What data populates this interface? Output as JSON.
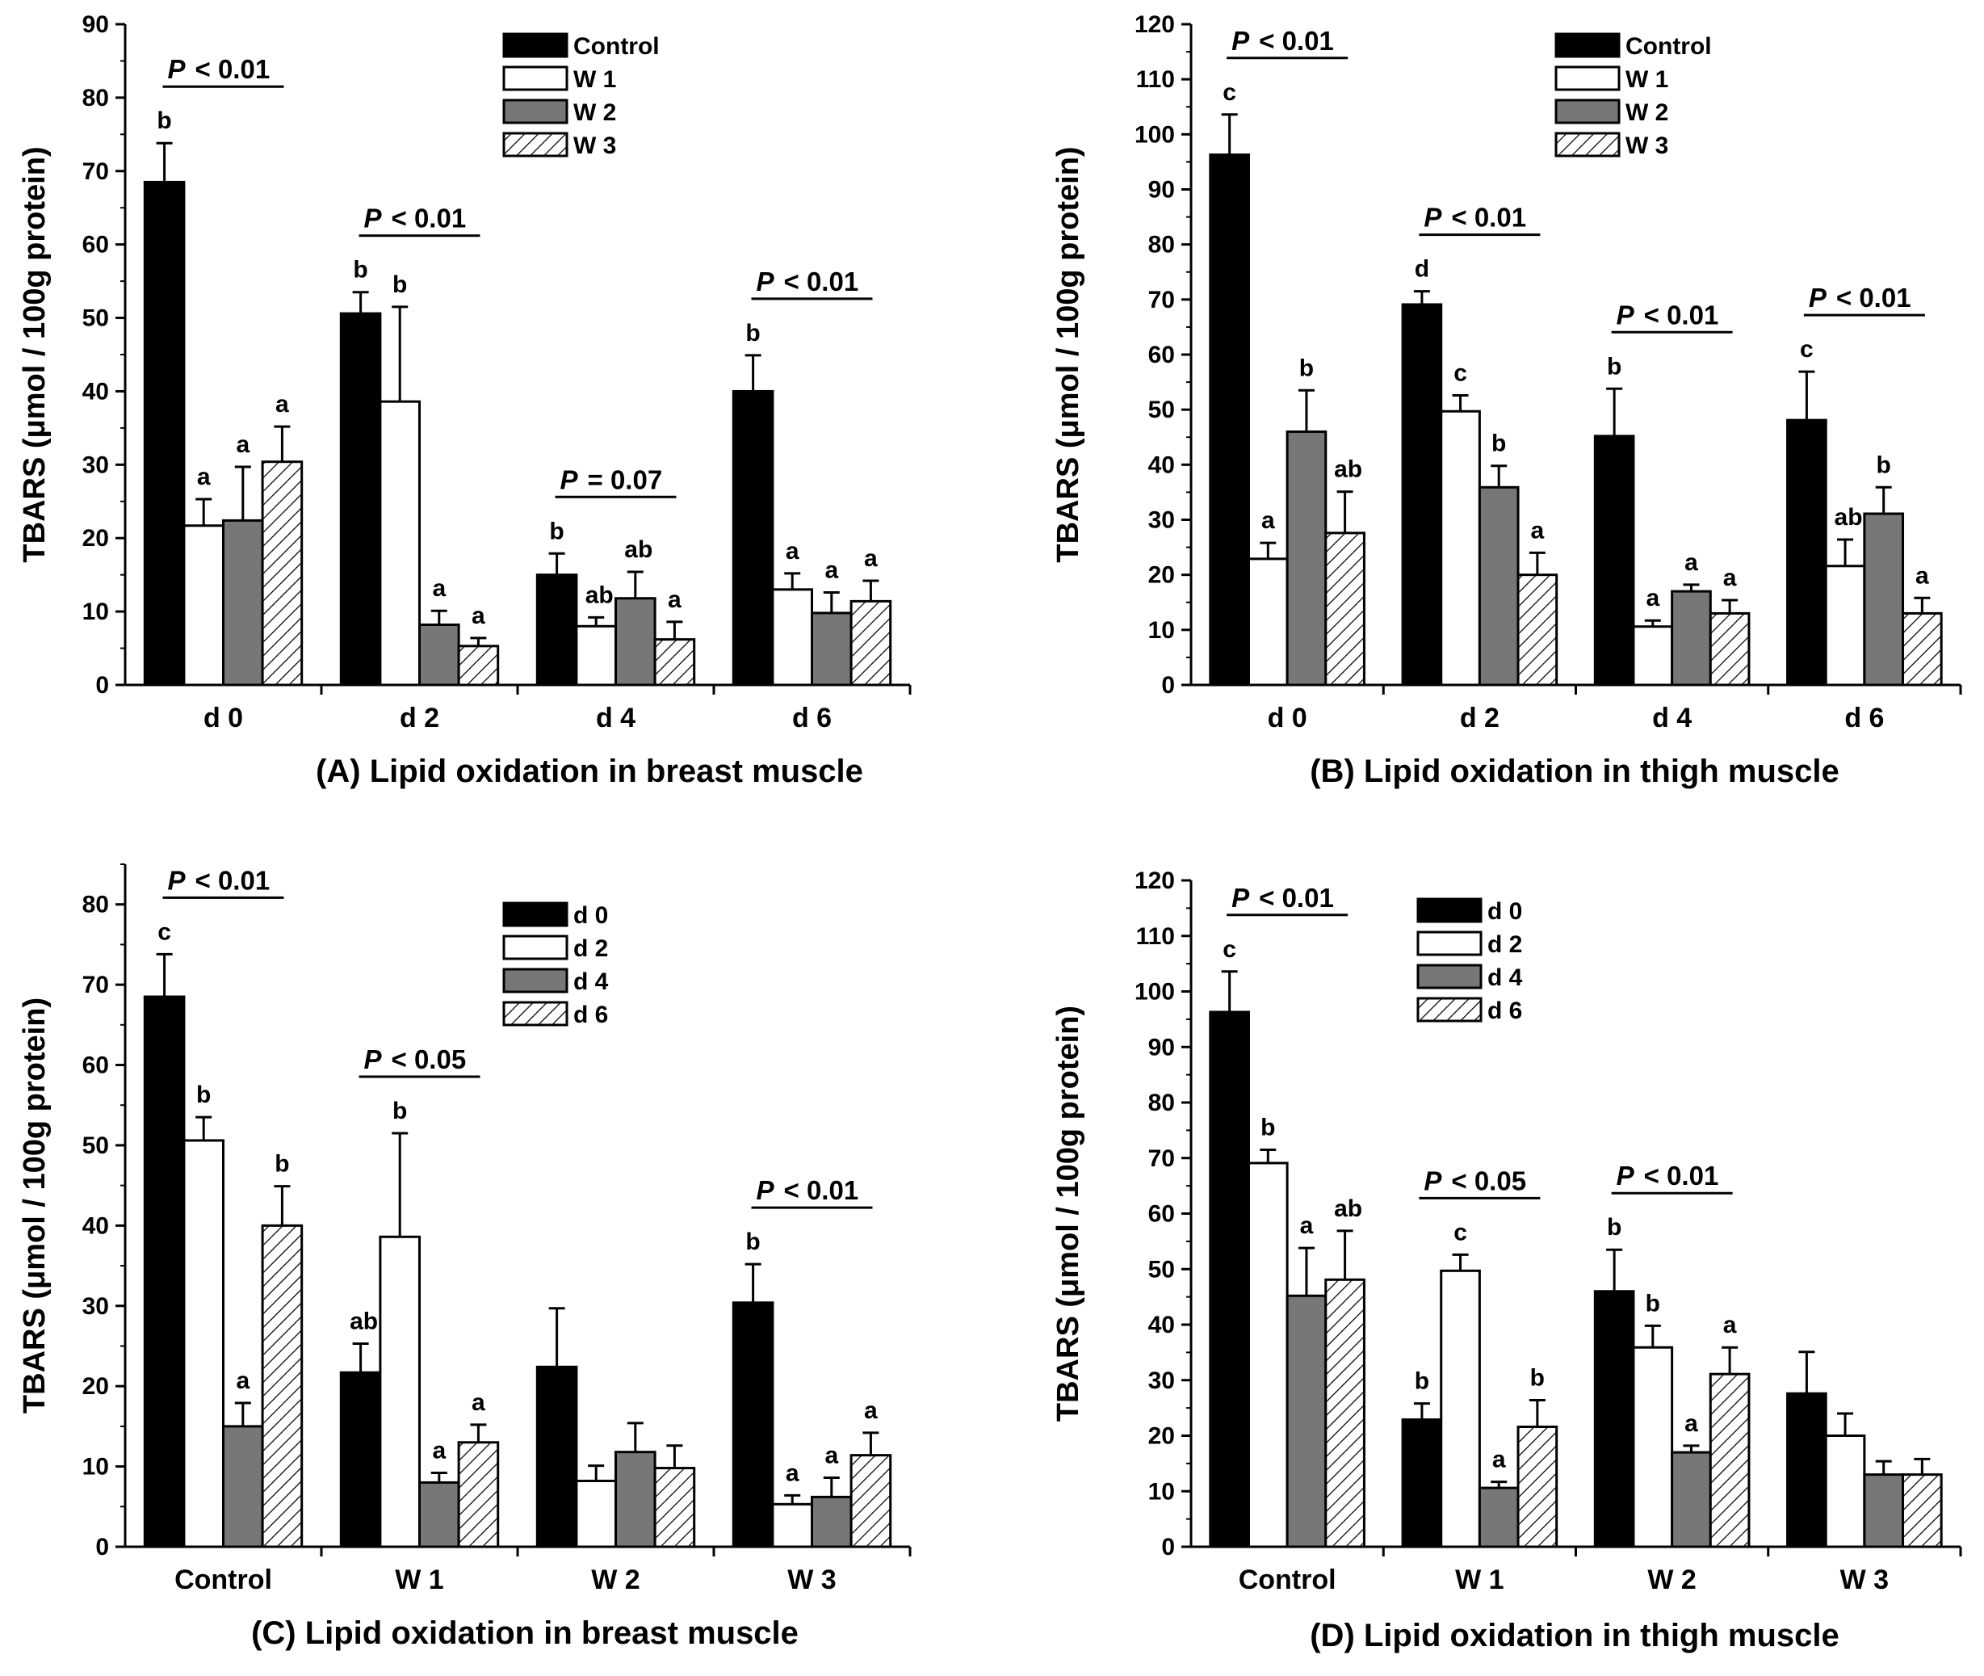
{
  "chart_data": [
    {
      "type": "bar",
      "panel": "A",
      "caption": "(A) Lipid oxidation in  breast  muscle",
      "ylabel": "TBARS (μmol / 100g protein)",
      "xlabel": "",
      "ylim": [
        0,
        90
      ],
      "ystep": 10,
      "categories": [
        "d 0",
        "d 2",
        "d 4",
        "d 6"
      ],
      "legend": {
        "position": "top-right",
        "entries": [
          "Control",
          "W 1",
          "W 2",
          "W 3"
        ]
      },
      "series": [
        {
          "name": "Control",
          "values": [
            68.5,
            50.6,
            15.0,
            40.0
          ],
          "errors": [
            5.3,
            2.9,
            2.9,
            4.9
          ],
          "letters": [
            "b",
            "b",
            "b",
            "b"
          ]
        },
        {
          "name": "W 1",
          "values": [
            21.7,
            38.6,
            8.0,
            13.0
          ],
          "errors": [
            3.6,
            12.9,
            1.2,
            2.2
          ],
          "letters": [
            "a",
            "b",
            "ab",
            "a"
          ]
        },
        {
          "name": "W 2",
          "values": [
            22.4,
            8.2,
            11.8,
            9.8
          ],
          "errors": [
            7.3,
            1.9,
            3.6,
            2.8
          ],
          "letters": [
            "a",
            "a",
            "ab",
            "a"
          ]
        },
        {
          "name": "W 3",
          "values": [
            30.4,
            5.3,
            6.2,
            11.4
          ],
          "errors": [
            4.8,
            1.1,
            2.4,
            2.8
          ],
          "letters": [
            "a",
            "a",
            "a",
            "a"
          ]
        }
      ],
      "pvalues": [
        {
          "label": "P",
          "op": "< 0.01",
          "group": 0
        },
        {
          "label": "P",
          "op": "< 0.01",
          "group": 1
        },
        {
          "label": "P",
          "op": "= 0.07",
          "group": 2
        },
        {
          "label": "P",
          "op": "< 0.01",
          "group": 3
        }
      ]
    },
    {
      "type": "bar",
      "panel": "B",
      "caption": "(B) Lipid oxidation in thigh muscle",
      "ylabel": "TBARS (μmol / 100g protein)",
      "xlabel": "",
      "ylim": [
        0,
        120
      ],
      "ystep": 10,
      "categories": [
        "d 0",
        "d 2",
        "d 4",
        "d 6"
      ],
      "legend": {
        "position": "top-right",
        "entries": [
          "Control",
          "W 1",
          "W 2",
          "W 3"
        ]
      },
      "series": [
        {
          "name": "Control",
          "values": [
            96.3,
            69.1,
            45.2,
            48.1
          ],
          "errors": [
            7.3,
            2.4,
            8.6,
            8.8
          ],
          "letters": [
            "c",
            "d",
            "b",
            "c"
          ]
        },
        {
          "name": "W 1",
          "values": [
            22.9,
            49.7,
            10.6,
            21.6
          ],
          "errors": [
            2.9,
            2.9,
            1.1,
            4.8
          ],
          "letters": [
            "a",
            "c",
            "a",
            "ab"
          ]
        },
        {
          "name": "W 2",
          "values": [
            46.0,
            35.9,
            17.0,
            31.1
          ],
          "errors": [
            7.5,
            3.9,
            1.2,
            4.8
          ],
          "letters": [
            "b",
            "b",
            "a",
            "b"
          ]
        },
        {
          "name": "W 3",
          "values": [
            27.6,
            20.0,
            13.0,
            13.0
          ],
          "errors": [
            7.5,
            4.0,
            2.4,
            2.8
          ],
          "letters": [
            "ab",
            "a",
            "a",
            "a"
          ]
        }
      ],
      "pvalues": [
        {
          "label": "P",
          "op": "< 0.01",
          "group": 0
        },
        {
          "label": "P",
          "op": "< 0.01",
          "group": 1
        },
        {
          "label": "P",
          "op": "< 0.01",
          "group": 2
        },
        {
          "label": "P",
          "op": "< 0.01",
          "group": 3
        }
      ]
    },
    {
      "type": "bar",
      "panel": "C",
      "caption": "(C) Lipid oxidation in breast muscle",
      "ylabel": "TBARS (μmol / 100g protein)",
      "xlabel": "",
      "ylim": [
        0,
        85
      ],
      "ystep": 10,
      "categories": [
        "Control",
        "W 1",
        "W 2",
        "W 3"
      ],
      "legend": {
        "position": "top-right",
        "entries": [
          "d 0",
          "d 2",
          "d 4",
          "d 6"
        ]
      },
      "series": [
        {
          "name": "d 0",
          "values": [
            68.5,
            21.7,
            22.4,
            30.4
          ],
          "errors": [
            5.3,
            3.6,
            7.3,
            4.8
          ],
          "letters": [
            "c",
            "ab",
            "",
            "b"
          ]
        },
        {
          "name": "d 2",
          "values": [
            50.6,
            38.6,
            8.2,
            5.3
          ],
          "errors": [
            2.9,
            12.9,
            1.9,
            1.1
          ],
          "letters": [
            "b",
            "b",
            "",
            "a"
          ]
        },
        {
          "name": "d 4",
          "values": [
            15.0,
            8.0,
            11.8,
            6.2
          ],
          "errors": [
            2.9,
            1.2,
            3.6,
            2.4
          ],
          "letters": [
            "a",
            "a",
            "",
            "a"
          ]
        },
        {
          "name": "d 6",
          "values": [
            40.0,
            13.0,
            9.8,
            11.4
          ],
          "errors": [
            4.9,
            2.2,
            2.8,
            2.8
          ],
          "letters": [
            "b",
            "a",
            "",
            "a"
          ]
        }
      ],
      "pvalues": [
        {
          "label": "P",
          "op": "< 0.01",
          "group": 0
        },
        {
          "label": "P",
          "op": "< 0.05",
          "group": 1
        },
        {
          "label": "P",
          "op": "< 0.01",
          "group": 3
        }
      ]
    },
    {
      "type": "bar",
      "panel": "D",
      "caption": "(D) Lipid oxidation in thigh muscle",
      "ylabel": "TBARS (μmol / 100g protein)",
      "xlabel": "",
      "ylim": [
        0,
        120
      ],
      "ystep": 10,
      "categories": [
        "Control",
        "W 1",
        "W 2",
        "W 3"
      ],
      "legend": {
        "position": "top-right",
        "entries": [
          "d 0",
          "d 2",
          "d 4",
          "d 6"
        ]
      },
      "series": [
        {
          "name": "d 0",
          "values": [
            96.3,
            22.9,
            46.0,
            27.6
          ],
          "errors": [
            7.3,
            2.9,
            7.5,
            7.5
          ],
          "letters": [
            "c",
            "b",
            "b",
            ""
          ]
        },
        {
          "name": "d 2",
          "values": [
            69.1,
            49.7,
            35.9,
            20.0
          ],
          "errors": [
            2.4,
            2.9,
            3.9,
            4.0
          ],
          "letters": [
            "b",
            "c",
            "b",
            ""
          ]
        },
        {
          "name": "d 4",
          "values": [
            45.2,
            10.6,
            17.0,
            13.0
          ],
          "errors": [
            8.6,
            1.1,
            1.2,
            2.4
          ],
          "letters": [
            "a",
            "a",
            "a",
            ""
          ]
        },
        {
          "name": "d 6",
          "values": [
            48.1,
            21.6,
            31.1,
            13.0
          ],
          "errors": [
            8.8,
            4.8,
            4.8,
            2.8
          ],
          "letters": [
            "ab",
            "b",
            "a",
            ""
          ]
        }
      ],
      "pvalues": [
        {
          "label": "P",
          "op": "< 0.01",
          "group": 0
        },
        {
          "label": "P",
          "op": "< 0.05",
          "group": 1
        },
        {
          "label": "P",
          "op": "< 0.01",
          "group": 2
        }
      ]
    }
  ]
}
